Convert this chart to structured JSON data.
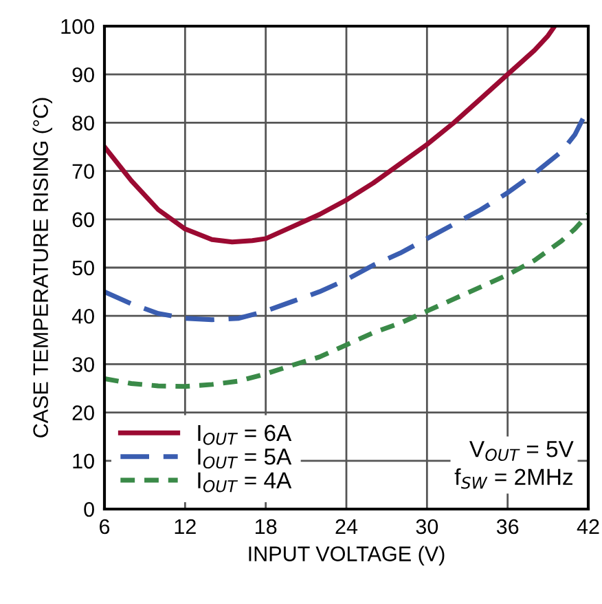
{
  "chart_data": {
    "type": "line",
    "xlabel": "INPUT VOLTAGE (V)",
    "ylabel": "CASE TEMPERATURE RISING (°C)",
    "xlim": [
      6,
      42
    ],
    "xticks": [
      6,
      12,
      18,
      24,
      30,
      36,
      42
    ],
    "ylim": [
      0,
      100
    ],
    "yticks": [
      0,
      10,
      20,
      30,
      40,
      50,
      60,
      70,
      80,
      90,
      100
    ],
    "grid": true,
    "legend": "bottom left",
    "marker": "none",
    "annotations": [
      "V$_{OUT}$ = 5V\nf$_{SW}$ = 2MHz"
    ],
    "series": [
      {
        "name": "I$_{OUT}$ = 6A",
        "color": "#9b0a32",
        "line_style": "solid",
        "x": [
          6,
          8,
          10,
          12,
          14,
          15.5,
          17,
          18,
          20,
          22,
          24,
          26,
          28,
          30,
          32,
          34,
          36,
          38,
          39,
          39.5
        ],
        "values": [
          75,
          68,
          62,
          58,
          55.8,
          55.3,
          55.6,
          56,
          58.5,
          61,
          64,
          67.5,
          71.5,
          75.5,
          80,
          85,
          90,
          95,
          98,
          100
        ]
      },
      {
        "name": "I$_{OUT}$ = 5A",
        "color": "#3a5db0",
        "line_style": "dashed",
        "x": [
          6,
          8,
          10,
          12,
          14,
          16,
          18,
          20,
          22,
          24,
          26,
          28,
          30,
          32,
          34,
          36,
          38,
          40,
          41,
          42
        ],
        "values": [
          45,
          42.5,
          40.5,
          39.5,
          39.2,
          39.5,
          41,
          43,
          45,
          47.5,
          50.5,
          53,
          56,
          59,
          62,
          65.5,
          69.5,
          74,
          77.5,
          83
        ]
      },
      {
        "name": "I$_{OUT}$ = 4A",
        "color": "#3a8a48",
        "line_style": "dotted",
        "x": [
          6,
          8,
          10,
          12,
          14,
          16,
          18,
          20,
          22,
          24,
          26,
          28,
          30,
          32,
          34,
          36,
          38,
          40,
          41,
          42
        ],
        "values": [
          27,
          26,
          25.5,
          25.4,
          25.8,
          26.5,
          28,
          29.8,
          31.5,
          34,
          36.5,
          38.5,
          41,
          43.5,
          46,
          48.5,
          51.5,
          55.5,
          58,
          61
        ]
      }
    ]
  }
}
